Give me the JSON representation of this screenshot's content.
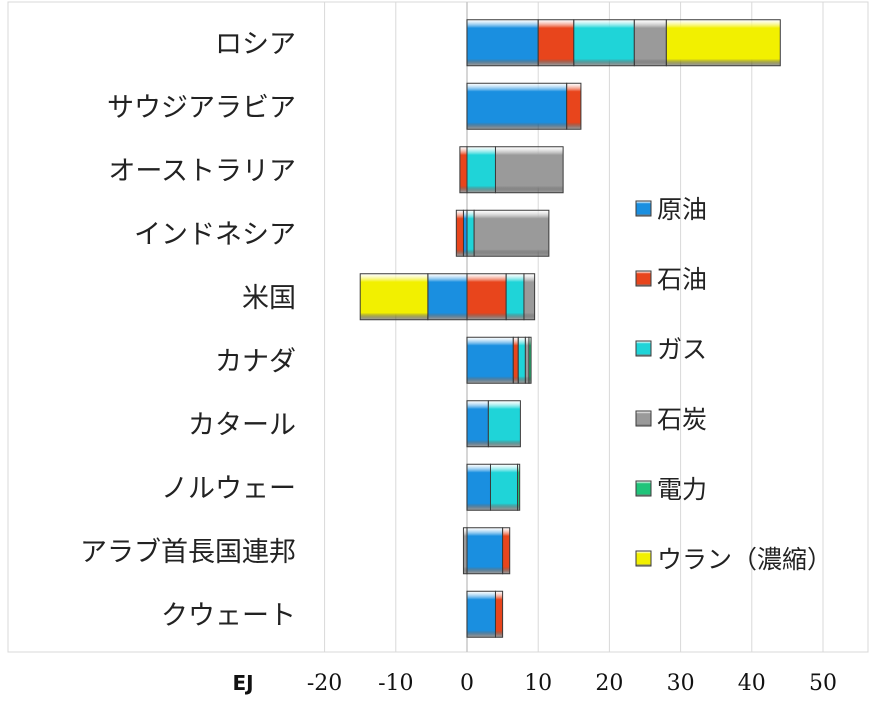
{
  "chart_data": {
    "type": "bar",
    "orientation": "horizontal",
    "stacked": true,
    "unit_label": "EJ",
    "xlim": [
      -20,
      50
    ],
    "xticks": [
      "-20",
      "-10",
      "0",
      "10",
      "20",
      "30",
      "40",
      "50"
    ],
    "xtick_values": [
      -20,
      -10,
      0,
      10,
      20,
      30,
      40,
      50
    ],
    "grid": "vertical",
    "legend_position": "right",
    "categories": [
      "ロシア",
      "サウジアラビア",
      "オーストラリア",
      "インドネシア",
      "米国",
      "カナダ",
      "カタール",
      "ノルウェー",
      "アラブ首長国連邦",
      "クウェート"
    ],
    "series": [
      {
        "name": "原油",
        "color": "#1a8fe0",
        "values": [
          10.0,
          14.0,
          0.0,
          -0.5,
          -5.5,
          6.5,
          3.0,
          3.3,
          5.0,
          4.0
        ]
      },
      {
        "name": "石油",
        "color": "#e8451c",
        "values": [
          5.0,
          2.0,
          -1.0,
          -1.0,
          5.5,
          0.7,
          0.0,
          0.0,
          1.0,
          1.0
        ]
      },
      {
        "name": "ガス",
        "color": "#1fd4d8",
        "values": [
          8.5,
          0.0,
          4.0,
          1.0,
          2.5,
          1.0,
          4.5,
          3.8,
          0.0,
          0.0
        ]
      },
      {
        "name": "石炭",
        "color": "#9a9a9a",
        "values": [
          4.5,
          0.0,
          9.5,
          10.5,
          1.5,
          0.5,
          0.0,
          0.0,
          -0.5,
          0.0
        ]
      },
      {
        "name": "電力",
        "color": "#20c47a",
        "values": [
          0.0,
          0.0,
          0.0,
          0.0,
          0.0,
          0.3,
          0.0,
          0.3,
          0.0,
          0.0
        ]
      },
      {
        "name": "ウラン（濃縮）",
        "color": "#f2f000",
        "values": [
          16.0,
          0.0,
          0.0,
          0.0,
          -9.5,
          0.0,
          0.0,
          0.0,
          0.0,
          0.0
        ]
      }
    ]
  }
}
